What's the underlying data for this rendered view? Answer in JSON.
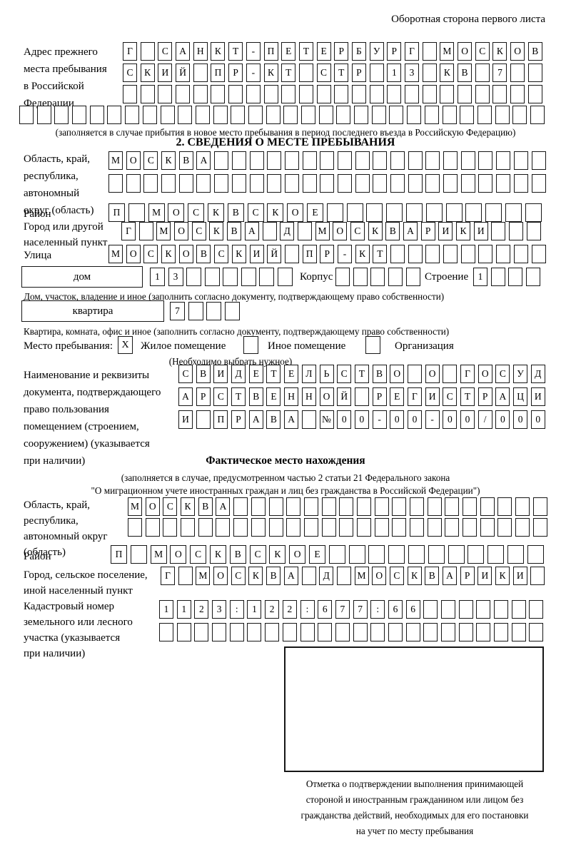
{
  "page": {
    "back_title": "Оборотная сторона первого листа"
  },
  "prev_address": {
    "label_lines": [
      "Адрес прежнего",
      "места пребывания",
      "в Российской",
      "Федерации"
    ],
    "rows": [
      {
        "t": "Г САНКТ-ПЕТЕРБУРГ МОСКОВ",
        "n": 24
      },
      {
        "t": "СКИЙ ПР-КТ СТР 13 КВ 7",
        "n": 24
      },
      {
        "t": "",
        "n": 24
      },
      {
        "t": "",
        "n": 30
      }
    ],
    "note": "(заполняется в случае прибытия в новое место пребывания в период последнего въезда в Российскую Федерацию)"
  },
  "stay_info": {
    "heading": "2. СВЕДЕНИЯ О МЕСТЕ ПРЕБЫВАНИЯ",
    "region": {
      "label_lines": [
        "Область, край,",
        "республика,",
        "автономный",
        "округ (область)"
      ],
      "rows": [
        {
          "t": "МОСКВА",
          "n": 25
        },
        {
          "t": "",
          "n": 25
        }
      ]
    },
    "district": {
      "label": "Район",
      "row": {
        "t": "П МОСКВСКОЕ",
        "n": 22
      }
    },
    "city": {
      "label_lines": [
        "Город или другой",
        "населенный пункт"
      ],
      "row": {
        "t": "Г МОСКВА Д МОСКВАРИКИ",
        "n": 24
      }
    },
    "street": {
      "label": "Улица",
      "row": {
        "t": "МОСКОВСКИЙ ПР-КТ",
        "n": 25
      }
    },
    "house": {
      "label": "дом",
      "row": {
        "t": "13",
        "n": 8
      },
      "korpus_label": "Корпус",
      "korpus_row": {
        "t": "",
        "n": 5
      },
      "stroenie_label": "Строение",
      "stroenie_row": {
        "t": "1",
        "n": 4
      },
      "note": "Дом, участок, владение и иное (заполнить согласно документу, подтверждающему право собственности)"
    },
    "apartment": {
      "label": "квартира",
      "row": {
        "t": "7",
        "n": 4
      },
      "note": "Квартира, комната, офис и иное (заполнить согласно документу, подтверждающему право собственности)"
    },
    "stay_type": {
      "label": "Место пребывания:",
      "options": [
        {
          "label": "Жилое помещение",
          "mark": "X"
        },
        {
          "label": "Иное помещение",
          "mark": ""
        },
        {
          "label": "Организация",
          "mark": ""
        }
      ],
      "note": "(Необходимо выбрать нужное)"
    },
    "document": {
      "label_lines": [
        "Наименование и реквизиты",
        "документа, подтверждающего",
        "право пользования",
        "помещением (строением,",
        "сооружением) (указывается",
        "при наличии)"
      ],
      "rows": [
        {
          "t": "СВИДЕТЕЛЬСТВО О ГОСУД",
          "n": 21
        },
        {
          "t": "АРСТВЕННОЙ РЕГИСТРАЦИ",
          "n": 21
        },
        {
          "t": "И ПРАВА №00-00-00/000",
          "n": 21
        }
      ]
    }
  },
  "actual_location": {
    "heading": "Фактическое место нахождения",
    "note_lines": [
      "(заполняется в случае, предусмотренном частью 2 статьи 21 Федерального закона",
      "\"О миграционном учете иностранных граждан и лиц без гражданства в Российской Федерации\")"
    ],
    "region": {
      "label_lines": [
        "Область, край,",
        "республика,",
        "автономный округ",
        "(область)"
      ],
      "rows": [
        {
          "t": "МОСКВА",
          "n": 24
        },
        {
          "t": "",
          "n": 24
        }
      ]
    },
    "district": {
      "label": "Район",
      "row": {
        "t": "П МОСКВСКОЕ",
        "n": 22
      }
    },
    "city": {
      "label_lines": [
        "Город, сельское поселение,",
        "иной населенный пункт"
      ],
      "row": {
        "t": "Г МОСКВА Д МОСКВАРИКИ",
        "n": 22
      }
    },
    "cadastral": {
      "label_lines": [
        "Кадастровый номер",
        "земельного или лесного",
        "участка (указывается",
        "при наличии)"
      ],
      "rows": [
        {
          "t": "1123:122:677:66",
          "n": 22
        },
        {
          "t": "",
          "n": 22
        }
      ]
    },
    "stamp_note_lines": [
      "Отметка о подтверждении выполнения принимающей",
      "стороной и иностранным гражданином или лицом без",
      "гражданства действий, необходимых для его постановки",
      "на учет по месту пребывания"
    ]
  }
}
